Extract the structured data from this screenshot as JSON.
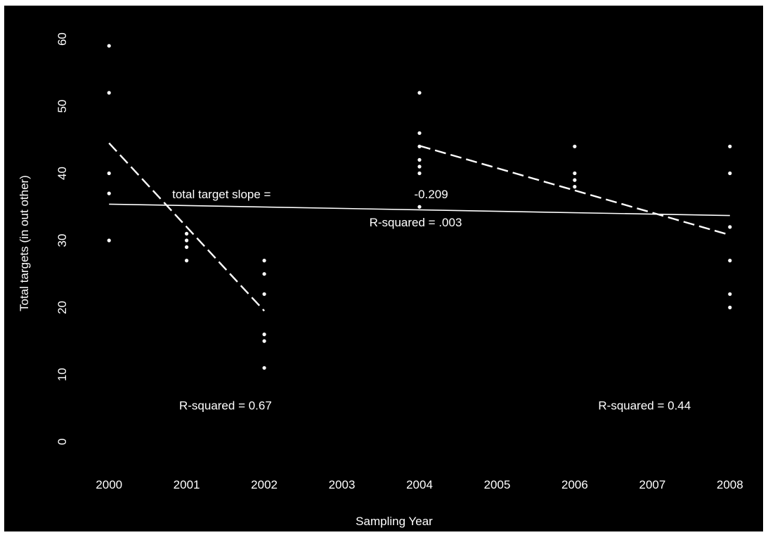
{
  "chart_data": {
    "type": "scatter",
    "xlabel": "Sampling Year",
    "ylabel": "Total targets (in out other)",
    "xlim": [
      1999.6,
      2008.4
    ],
    "ylim": [
      -5,
      63
    ],
    "x_ticks": [
      "2000",
      "2001",
      "2002",
      "2003",
      "2004",
      "2005",
      "2006",
      "2007",
      "2008"
    ],
    "y_ticks": [
      "0",
      "10",
      "20",
      "30",
      "40",
      "50",
      "60"
    ],
    "background": "#000000",
    "foreground": "#ffffff",
    "points": [
      {
        "x": 2000,
        "y": 59
      },
      {
        "x": 2000,
        "y": 52
      },
      {
        "x": 2000,
        "y": 40
      },
      {
        "x": 2000,
        "y": 37
      },
      {
        "x": 2000,
        "y": 30
      },
      {
        "x": 2001,
        "y": 31
      },
      {
        "x": 2001,
        "y": 30
      },
      {
        "x": 2001,
        "y": 29
      },
      {
        "x": 2001,
        "y": 27
      },
      {
        "x": 2002,
        "y": 27
      },
      {
        "x": 2002,
        "y": 25
      },
      {
        "x": 2002,
        "y": 22
      },
      {
        "x": 2002,
        "y": 16
      },
      {
        "x": 2002,
        "y": 15
      },
      {
        "x": 2002,
        "y": 11
      },
      {
        "x": 2004,
        "y": 52
      },
      {
        "x": 2004,
        "y": 46
      },
      {
        "x": 2004,
        "y": 44
      },
      {
        "x": 2004,
        "y": 42
      },
      {
        "x": 2004,
        "y": 41
      },
      {
        "x": 2004,
        "y": 40
      },
      {
        "x": 2004,
        "y": 35
      },
      {
        "x": 2006,
        "y": 44
      },
      {
        "x": 2006,
        "y": 40
      },
      {
        "x": 2006,
        "y": 39
      },
      {
        "x": 2006,
        "y": 38
      },
      {
        "x": 2008,
        "y": 44
      },
      {
        "x": 2008,
        "y": 40
      },
      {
        "x": 2008,
        "y": 32
      },
      {
        "x": 2008,
        "y": 27
      },
      {
        "x": 2008,
        "y": 22
      },
      {
        "x": 2008,
        "y": 20
      }
    ],
    "trend_lines": [
      {
        "style": "solid",
        "x": [
          2000,
          2008
        ],
        "y": [
          35.4,
          33.7
        ]
      },
      {
        "style": "dashed",
        "x": [
          2000,
          2002
        ],
        "y": [
          44.5,
          19.5
        ]
      },
      {
        "style": "dashed",
        "x": [
          2004,
          2008
        ],
        "y": [
          44.1,
          30.8
        ]
      }
    ],
    "annotations": [
      {
        "text": "total target slope =",
        "x": 2001.45,
        "y": 36.3,
        "anchor": "middle"
      },
      {
        "text": "-0.209",
        "x": 2004.15,
        "y": 36.3,
        "anchor": "middle"
      },
      {
        "text": "R-squared = .003",
        "x": 2003.95,
        "y": 32.1,
        "anchor": "middle"
      },
      {
        "text": "R-squared = 0.67",
        "x": 2001.5,
        "y": 4.8,
        "anchor": "middle"
      },
      {
        "text": "R-squared = 0.44",
        "x": 2006.9,
        "y": 4.8,
        "anchor": "middle"
      }
    ]
  }
}
